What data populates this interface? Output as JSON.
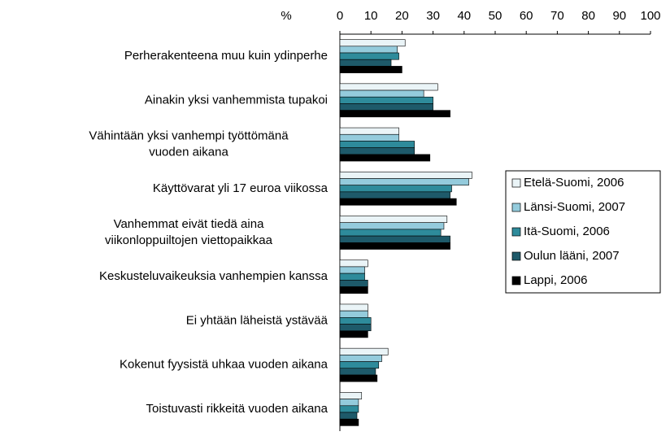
{
  "chart_data": {
    "type": "bar",
    "orientation": "horizontal",
    "xlabel": "%",
    "categories": [
      "Perherakenteena muu kuin ydinperhe",
      "Ainakin yksi vanhemmista tupakoi",
      "Vähintään yksi vanhempi työttömänä\nvuoden aikana",
      "Käyttövarat yli 17 euroa viikossa",
      "Vanhemmat eivät tiedä aina\nviikonloppuiltojen viettopaikkaa",
      "Keskusteluvaikeuksia vanhempien kanssa",
      "Ei yhtään läheistä ystävää",
      "Kokenut fyysistä uhkaa vuoden aikana",
      "Toistuvasti rikkeitä vuoden aikana"
    ],
    "series": [
      {
        "name": "Etelä-Suomi, 2006",
        "color": "#eaf4f7",
        "values": [
          21,
          31.5,
          19,
          42.5,
          34.5,
          9,
          9,
          15.5,
          7
        ]
      },
      {
        "name": "Länsi-Suomi, 2007",
        "color": "#94cbdc",
        "values": [
          18.5,
          27,
          19,
          41.5,
          33.5,
          8,
          9,
          13.5,
          6
        ]
      },
      {
        "name": "Itä-Suomi, 2006",
        "color": "#2e8b9b",
        "values": [
          19,
          30,
          24,
          36,
          32.5,
          8,
          10,
          12.5,
          6
        ]
      },
      {
        "name": "Oulun lääni, 2007",
        "color": "#1e5a6a",
        "values": [
          16.5,
          30,
          24,
          35.5,
          35.5,
          9,
          10,
          11.5,
          5.5
        ]
      },
      {
        "name": "Lappi, 2006",
        "color": "#000000",
        "values": [
          20,
          35.5,
          29,
          37.5,
          35.5,
          9,
          9,
          12,
          6
        ]
      }
    ],
    "xlim": [
      0,
      100
    ],
    "xticks": [
      0,
      10,
      20,
      30,
      40,
      50,
      60,
      70,
      80,
      90,
      100
    ],
    "legend": "right"
  }
}
